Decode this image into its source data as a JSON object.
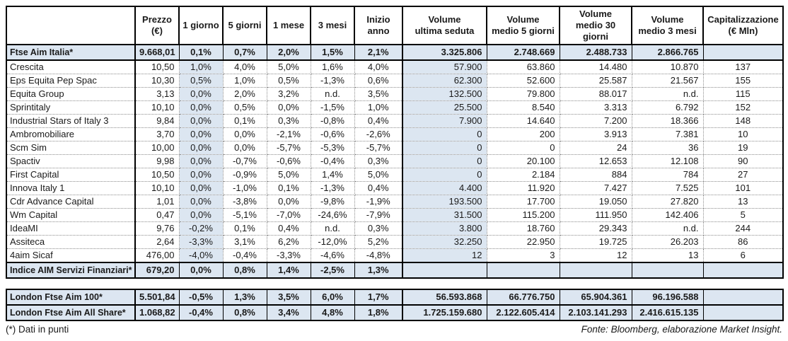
{
  "colors": {
    "row_shade": "#dce6f1",
    "border": "#000000",
    "background": "#ffffff"
  },
  "footer": {
    "note": "(*) Dati in punti",
    "source": "Fonte: Bloomberg, elaborazione Market Insight."
  },
  "chart_data": [
    {
      "type": "table",
      "name": "ftse-aim-italia",
      "columns": [
        "",
        "Prezzo\n(€)",
        "1 giorno",
        "5 giorni",
        "1 mese",
        "3 mesi",
        "Inizio anno",
        "Volume\nultima seduta",
        "Volume\nmedio 5 giorni",
        "Volume\nmedio 30\ngiorni",
        "Volume\nmedio 3 mesi",
        "Capitalizzazione\n(€ Mln)"
      ],
      "rows": [
        {
          "label": "Ftse Aim Italia*",
          "style": "index",
          "values": [
            "9.668,01",
            "0,1%",
            "0,7%",
            "2,0%",
            "1,5%",
            "2,1%",
            "3.325.806",
            "2.748.669",
            "2.488.733",
            "2.866.765",
            ""
          ]
        },
        {
          "label": "Crescita",
          "style": "data",
          "values": [
            "10,50",
            "1,0%",
            "4,0%",
            "5,0%",
            "1,6%",
            "4,0%",
            "57.900",
            "63.860",
            "14.480",
            "10.870",
            "137"
          ]
        },
        {
          "label": "Eps Equita Pep Spac",
          "style": "data",
          "values": [
            "10,30",
            "0,5%",
            "1,0%",
            "0,5%",
            "-1,3%",
            "0,6%",
            "62.300",
            "52.600",
            "25.587",
            "21.567",
            "155"
          ]
        },
        {
          "label": "Equita Group",
          "style": "data",
          "values": [
            "3,13",
            "0,0%",
            "2,0%",
            "3,2%",
            "n.d.",
            "3,5%",
            "132.500",
            "79.800",
            "88.017",
            "n.d.",
            "115"
          ]
        },
        {
          "label": "Sprintitaly",
          "style": "data",
          "values": [
            "10,10",
            "0,0%",
            "0,5%",
            "0,0%",
            "-1,5%",
            "1,0%",
            "25.500",
            "8.540",
            "3.313",
            "6.792",
            "152"
          ]
        },
        {
          "label": "Industrial Stars of Italy 3",
          "style": "data",
          "values": [
            "9,84",
            "0,0%",
            "0,1%",
            "0,3%",
            "-0,8%",
            "0,4%",
            "7.900",
            "14.640",
            "7.200",
            "18.366",
            "148"
          ]
        },
        {
          "label": "Ambromobiliare",
          "style": "data",
          "values": [
            "3,70",
            "0,0%",
            "0,0%",
            "-2,1%",
            "-0,6%",
            "-2,6%",
            "0",
            "200",
            "3.913",
            "7.381",
            "10"
          ]
        },
        {
          "label": "Scm Sim",
          "style": "data",
          "values": [
            "10,00",
            "0,0%",
            "0,0%",
            "-5,7%",
            "-5,3%",
            "-5,7%",
            "0",
            "0",
            "24",
            "36",
            "19"
          ]
        },
        {
          "label": "Spactiv",
          "style": "data",
          "values": [
            "9,98",
            "0,0%",
            "-0,7%",
            "-0,6%",
            "-0,4%",
            "0,3%",
            "0",
            "20.100",
            "12.653",
            "12.108",
            "90"
          ]
        },
        {
          "label": "First Capital",
          "style": "data",
          "values": [
            "10,50",
            "0,0%",
            "-0,9%",
            "5,0%",
            "1,4%",
            "5,0%",
            "0",
            "2.184",
            "884",
            "784",
            "27"
          ]
        },
        {
          "label": "Innova Italy 1",
          "style": "data",
          "values": [
            "10,10",
            "0,0%",
            "-1,0%",
            "0,1%",
            "-1,3%",
            "0,4%",
            "4.400",
            "11.920",
            "7.427",
            "7.525",
            "101"
          ]
        },
        {
          "label": "Cdr Advance Capital",
          "style": "data",
          "values": [
            "1,01",
            "0,0%",
            "-3,8%",
            "0,0%",
            "-9,8%",
            "-1,9%",
            "193.500",
            "17.700",
            "19.050",
            "27.820",
            "13"
          ]
        },
        {
          "label": "Wm Capital",
          "style": "data",
          "values": [
            "0,47",
            "0,0%",
            "-5,1%",
            "-7,0%",
            "-24,6%",
            "-7,9%",
            "31.500",
            "115.200",
            "111.950",
            "142.406",
            "5"
          ]
        },
        {
          "label": "IdeaMI",
          "style": "data",
          "values": [
            "9,76",
            "-0,2%",
            "0,1%",
            "0,4%",
            "n.d.",
            "0,3%",
            "3.800",
            "18.760",
            "29.343",
            "n.d.",
            "244"
          ]
        },
        {
          "label": "Assiteca",
          "style": "data",
          "values": [
            "2,64",
            "-3,3%",
            "3,1%",
            "6,2%",
            "-12,0%",
            "5,2%",
            "32.250",
            "22.950",
            "19.725",
            "26.203",
            "86"
          ]
        },
        {
          "label": "4aim Sicaf",
          "style": "data",
          "values": [
            "476,00",
            "-4,0%",
            "-0,4%",
            "-3,3%",
            "-4,6%",
            "-4,8%",
            "12",
            "3",
            "12",
            "13",
            "6"
          ]
        },
        {
          "label": "Indice AIM Servizi Finanziari*",
          "style": "index",
          "values": [
            "679,20",
            "0,0%",
            "0,8%",
            "1,4%",
            "-2,5%",
            "1,3%",
            "",
            "",
            "",
            "",
            ""
          ]
        }
      ]
    },
    {
      "type": "table",
      "name": "london-ftse-aim",
      "columns": null,
      "rows": [
        {
          "label": "London Ftse Aim 100*",
          "style": "index",
          "values": [
            "5.501,84",
            "-0,5%",
            "1,3%",
            "3,5%",
            "6,0%",
            "1,7%",
            "56.593.868",
            "66.776.750",
            "65.904.361",
            "96.196.588",
            ""
          ]
        },
        {
          "label": "London Ftse Aim All Share*",
          "style": "index",
          "values": [
            "1.068,82",
            "-0,4%",
            "0,8%",
            "3,4%",
            "4,8%",
            "1,8%",
            "1.725.159.680",
            "2.122.605.414",
            "2.103.141.293",
            "2.416.615.135",
            ""
          ]
        }
      ]
    }
  ]
}
